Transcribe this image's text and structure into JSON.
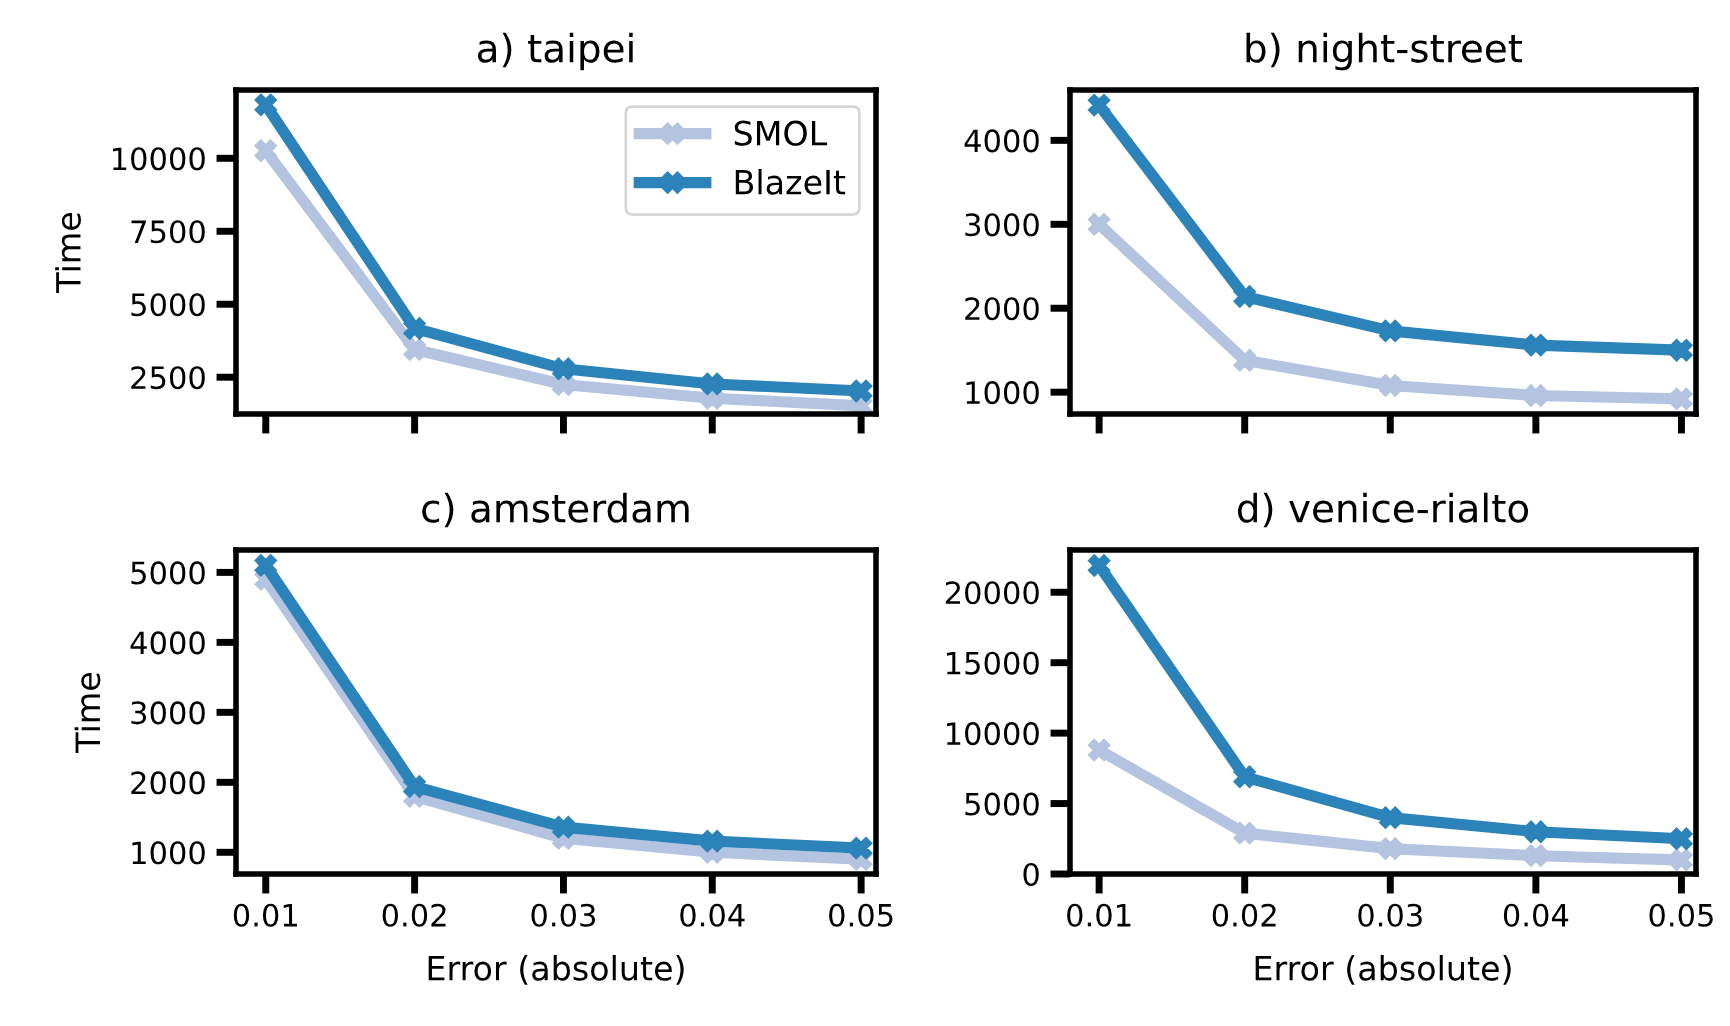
{
  "chart_data": [
    {
      "type": "line",
      "title": "a) taipei",
      "ylabel": "Time",
      "x": [
        0.01,
        0.02,
        0.03,
        0.04,
        0.05
      ],
      "xlim": [
        0.008,
        0.051
      ],
      "xticks": [
        0.01,
        0.02,
        0.03,
        0.04,
        0.05
      ],
      "ylim": [
        1240,
        12340
      ],
      "yticks": [
        2500,
        5000,
        7500,
        10000
      ],
      "tick_labels": "y",
      "marker": "cross",
      "legend": "top right",
      "series": [
        {
          "name": "SMOL",
          "color": "#b3c3e0",
          "values": [
            10260,
            3450,
            2250,
            1780,
            1520
          ]
        },
        {
          "name": "BlazeIt",
          "color": "#2b83ba",
          "values": [
            11830,
            4170,
            2790,
            2270,
            2030
          ]
        }
      ]
    },
    {
      "type": "line",
      "title": "b) night-street",
      "x": [
        0.01,
        0.02,
        0.03,
        0.04,
        0.05
      ],
      "xlim": [
        0.008,
        0.051
      ],
      "xticks": [
        0.01,
        0.02,
        0.03,
        0.04,
        0.05
      ],
      "ylim": [
        740,
        4600
      ],
      "yticks": [
        1000,
        2000,
        3000,
        4000
      ],
      "tick_labels": "y",
      "marker": "cross",
      "series": [
        {
          "color": "#b3c3e0",
          "values": [
            3000,
            1380,
            1080,
            960,
            920
          ]
        },
        {
          "color": "#2b83ba",
          "values": [
            4420,
            2140,
            1730,
            1560,
            1500
          ]
        }
      ]
    },
    {
      "type": "line",
      "title": "c) amsterdam",
      "ylabel": "Time",
      "xlabel": "Error (absolute)",
      "x": [
        0.01,
        0.02,
        0.03,
        0.04,
        0.05
      ],
      "xlim": [
        0.008,
        0.051
      ],
      "xticks": [
        0.01,
        0.02,
        0.03,
        0.04,
        0.05
      ],
      "ylim": [
        690,
        5320
      ],
      "yticks": [
        1000,
        2000,
        3000,
        4000,
        5000
      ],
      "marker": "cross",
      "series": [
        {
          "color": "#b3c3e0",
          "values": [
            4900,
            1800,
            1200,
            1000,
            900
          ]
        },
        {
          "color": "#2b83ba",
          "values": [
            5100,
            1940,
            1360,
            1160,
            1060
          ]
        }
      ]
    },
    {
      "type": "line",
      "title": "d) venice-rialto",
      "xlabel": "Error (absolute)",
      "x": [
        0.01,
        0.02,
        0.03,
        0.04,
        0.05
      ],
      "xlim": [
        0.008,
        0.051
      ],
      "xticks": [
        0.01,
        0.02,
        0.03,
        0.04,
        0.05
      ],
      "ylim": [
        0,
        23000
      ],
      "yticks": [
        0,
        5000,
        10000,
        15000,
        20000
      ],
      "marker": "cross",
      "series": [
        {
          "color": "#b3c3e0",
          "values": [
            8800,
            2900,
            1800,
            1300,
            1000
          ]
        },
        {
          "color": "#2b83ba",
          "values": [
            21900,
            6900,
            4000,
            3000,
            2500
          ]
        }
      ]
    }
  ]
}
